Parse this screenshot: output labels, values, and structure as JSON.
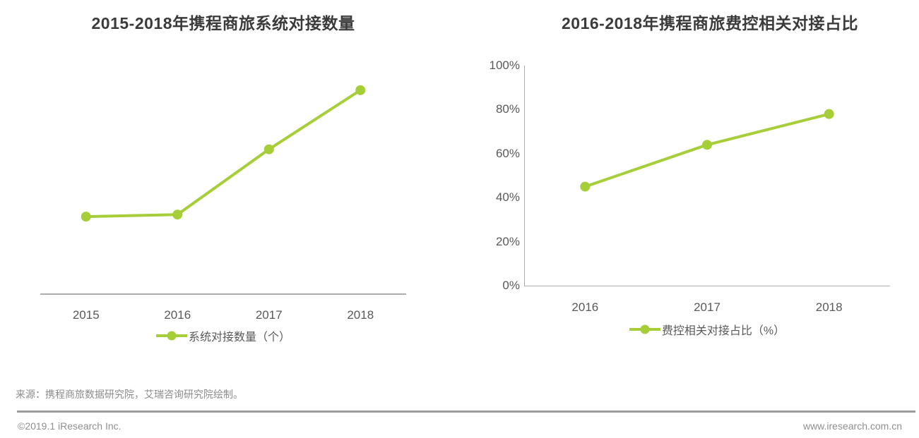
{
  "colors": {
    "accent_green": "#a6ce39",
    "title_text": "#3b3b3b",
    "axis_text": "#595959",
    "axis_line": "#ababab",
    "muted_text": "#8c8c8c"
  },
  "chart_data": [
    {
      "type": "line",
      "title": "2015-2018年携程商旅系统对接数量",
      "categories": [
        "2015",
        "2016",
        "2017",
        "2018"
      ],
      "series": [
        {
          "name": "系统对接数量（个）",
          "values": [
            38,
            39,
            71,
            100
          ]
        }
      ],
      "legend": "系统对接数量（个）",
      "ylim": [
        0,
        120
      ],
      "y_axis_visible": false,
      "grid": false,
      "legend_position": "bottom",
      "note": "y-axis unlabeled in source; values are relative estimates from point heights"
    },
    {
      "type": "line",
      "title": "2016-2018年携程商旅费控相关对接占比",
      "categories": [
        "2016",
        "2017",
        "2018"
      ],
      "series": [
        {
          "name": "费控相关对接占比（%）",
          "values": [
            45,
            64,
            78
          ]
        }
      ],
      "legend": "费控相关对接占比（%）",
      "ytick_labels": [
        "100%",
        "80%",
        "60%",
        "40%",
        "20%",
        "0%"
      ],
      "ylim": [
        0,
        100
      ],
      "y_axis_visible": true,
      "grid": false,
      "legend_position": "bottom"
    }
  ],
  "page": {
    "source_note": "来源：携程商旅数据研究院，艾瑞咨询研究院绘制。",
    "footer": {
      "copyright": "©2019.1 iResearch Inc.",
      "website": "www.iresearch.com.cn"
    }
  }
}
